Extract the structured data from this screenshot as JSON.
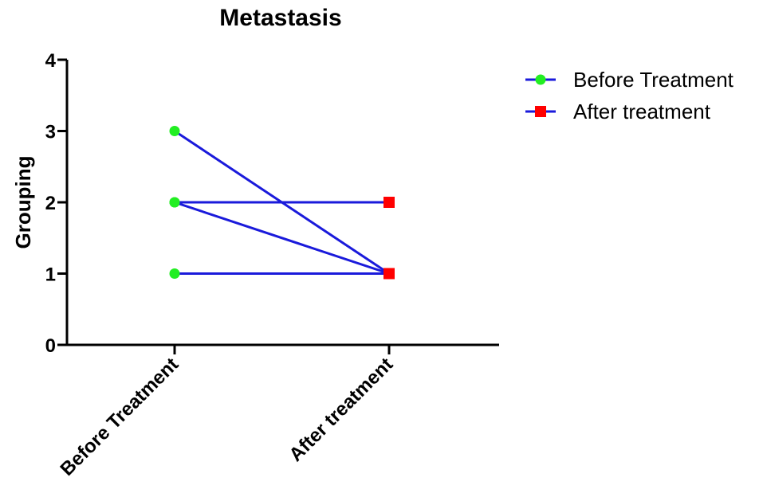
{
  "chart_data": {
    "type": "line",
    "title": "Metastasis",
    "xlabel": "",
    "ylabel": "Grouping",
    "categories": [
      "Before Treatment",
      "After treatment"
    ],
    "ylim": [
      0,
      4
    ],
    "yticks": [
      "0",
      "1",
      "2",
      "3",
      "4"
    ],
    "grid": false,
    "legend_position": "top-right",
    "line_color": "#1a1adb",
    "series": [
      {
        "name": "Before Treatment",
        "marker": "circle",
        "color": "#22ee22"
      },
      {
        "name": "After treatment",
        "marker": "square",
        "color": "#ff0000"
      }
    ],
    "pairs": [
      {
        "before": 3,
        "after": 1
      },
      {
        "before": 2,
        "after": 2
      },
      {
        "before": 2,
        "after": 1
      },
      {
        "before": 1,
        "after": 1
      }
    ]
  }
}
